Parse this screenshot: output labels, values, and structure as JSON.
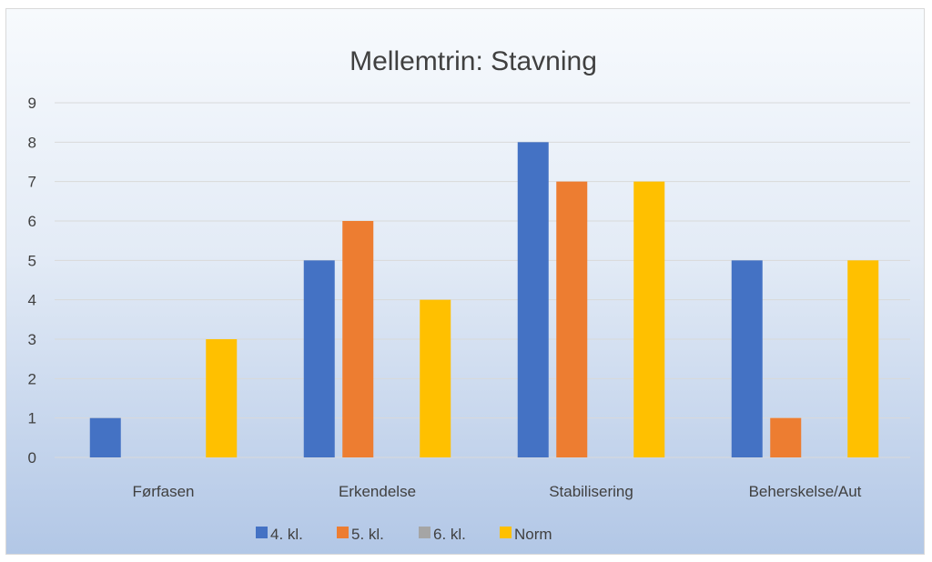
{
  "chart_data": {
    "type": "bar",
    "title": "Mellemtrin: Stavning",
    "xlabel": "",
    "ylabel": "",
    "categories": [
      "Førfasen",
      "Erkendelse",
      "Stabilisering",
      "Beherskelse/Aut"
    ],
    "series": [
      {
        "name": "4. kl.",
        "color": "#4472c4",
        "values": [
          1,
          5,
          8,
          5
        ]
      },
      {
        "name": "5. kl.",
        "color": "#ed7d31",
        "values": [
          0,
          6,
          7,
          1
        ]
      },
      {
        "name": "6. kl.",
        "color": "#a5a5a5",
        "values": [
          0,
          0,
          0,
          0
        ]
      },
      {
        "name": "Norm",
        "color": "#ffc000",
        "values": [
          3,
          4,
          7,
          5
        ]
      }
    ],
    "ylim": [
      0,
      9
    ],
    "yticks": [
      0,
      1,
      2,
      3,
      4,
      5,
      6,
      7,
      8,
      9
    ],
    "grid": true,
    "legend_position": "bottom"
  }
}
